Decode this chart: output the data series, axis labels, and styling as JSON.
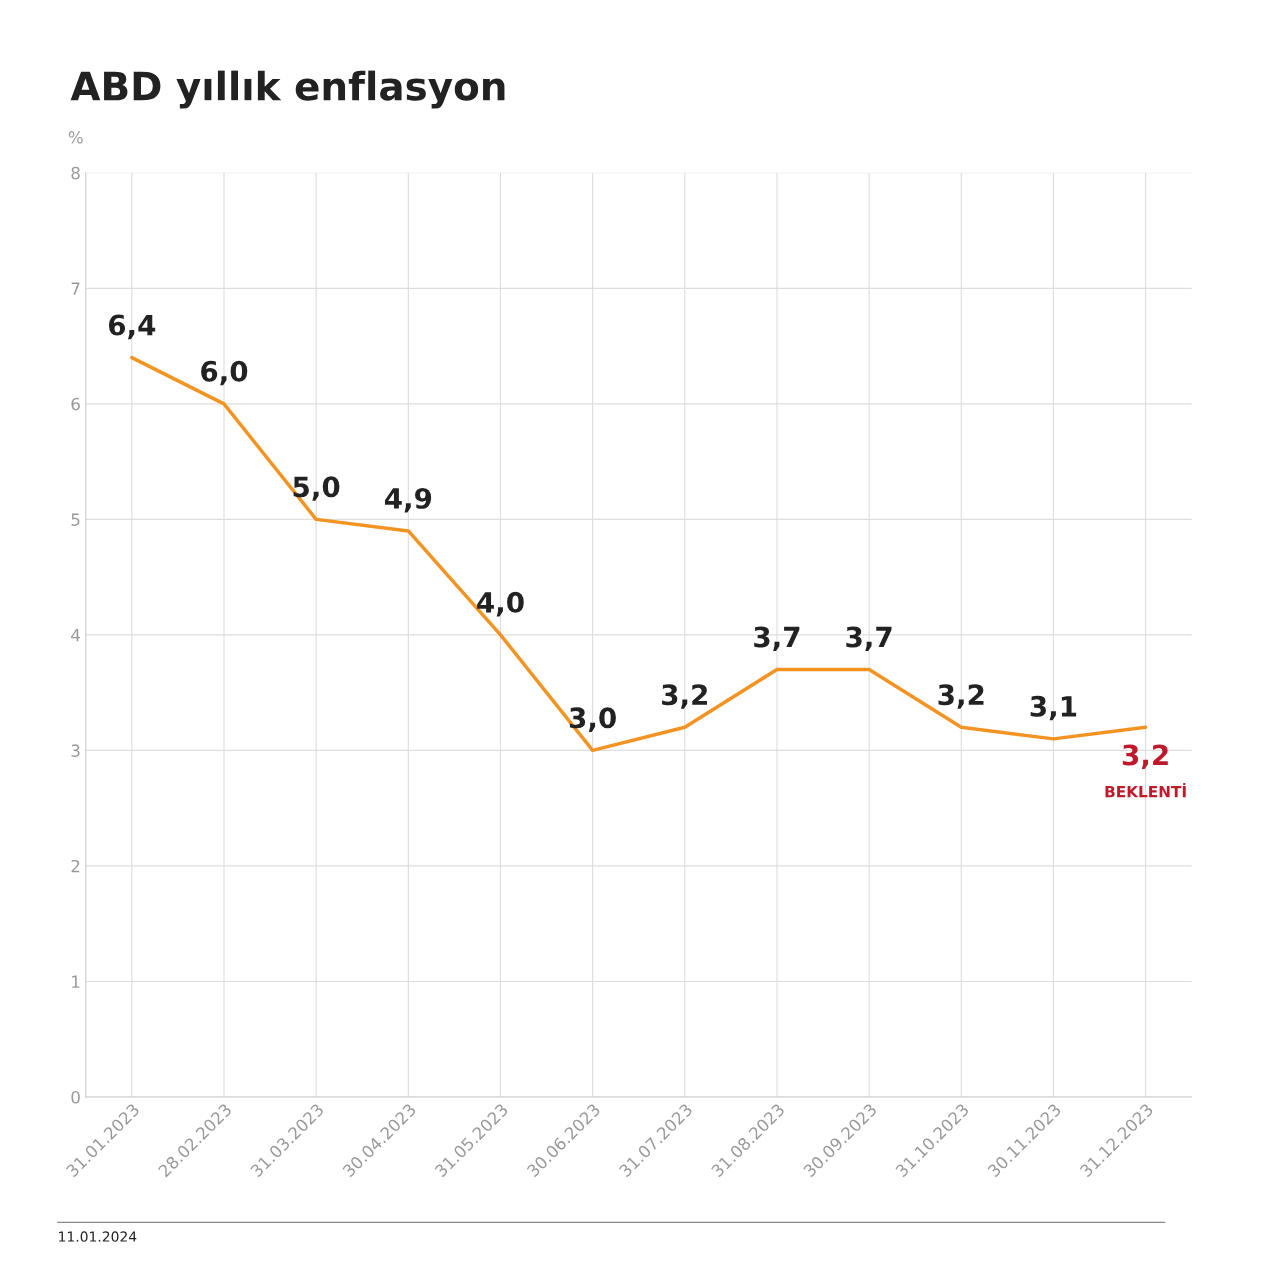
{
  "chart_data": {
    "type": "line",
    "title": "ABD yıllık enflasyon",
    "ylabel": "%",
    "categories": [
      "31.01.2023",
      "28.02.2023",
      "31.03.2023",
      "30.04.2023",
      "31.05.2023",
      "30.06.2023",
      "31.07.2023",
      "31.08.2023",
      "30.09.2023",
      "31.10.2023",
      "30.11.2023",
      "31.12.2023"
    ],
    "series": [
      {
        "color": "#f39322",
        "values": [
          6.4,
          6.0,
          5.0,
          4.9,
          4.0,
          3.0,
          3.2,
          3.7,
          3.7,
          3.2,
          3.1,
          3.2
        ],
        "value_labels": [
          "6,4",
          "6,0",
          "5,0",
          "4,9",
          "4,0",
          "3,0",
          "3,2",
          "3,7",
          "3,7",
          "3,2",
          "3,1",
          null
        ]
      }
    ],
    "ylim": [
      0,
      8
    ],
    "yticks": [
      0,
      1,
      2,
      3,
      4,
      5,
      6,
      7,
      8
    ],
    "grid": true,
    "annotations": [
      {
        "text": "3,2",
        "x": "31.12.2023",
        "y": 3.2
      },
      "BEKLENTİ",
      "11.01.2024"
    ]
  }
}
